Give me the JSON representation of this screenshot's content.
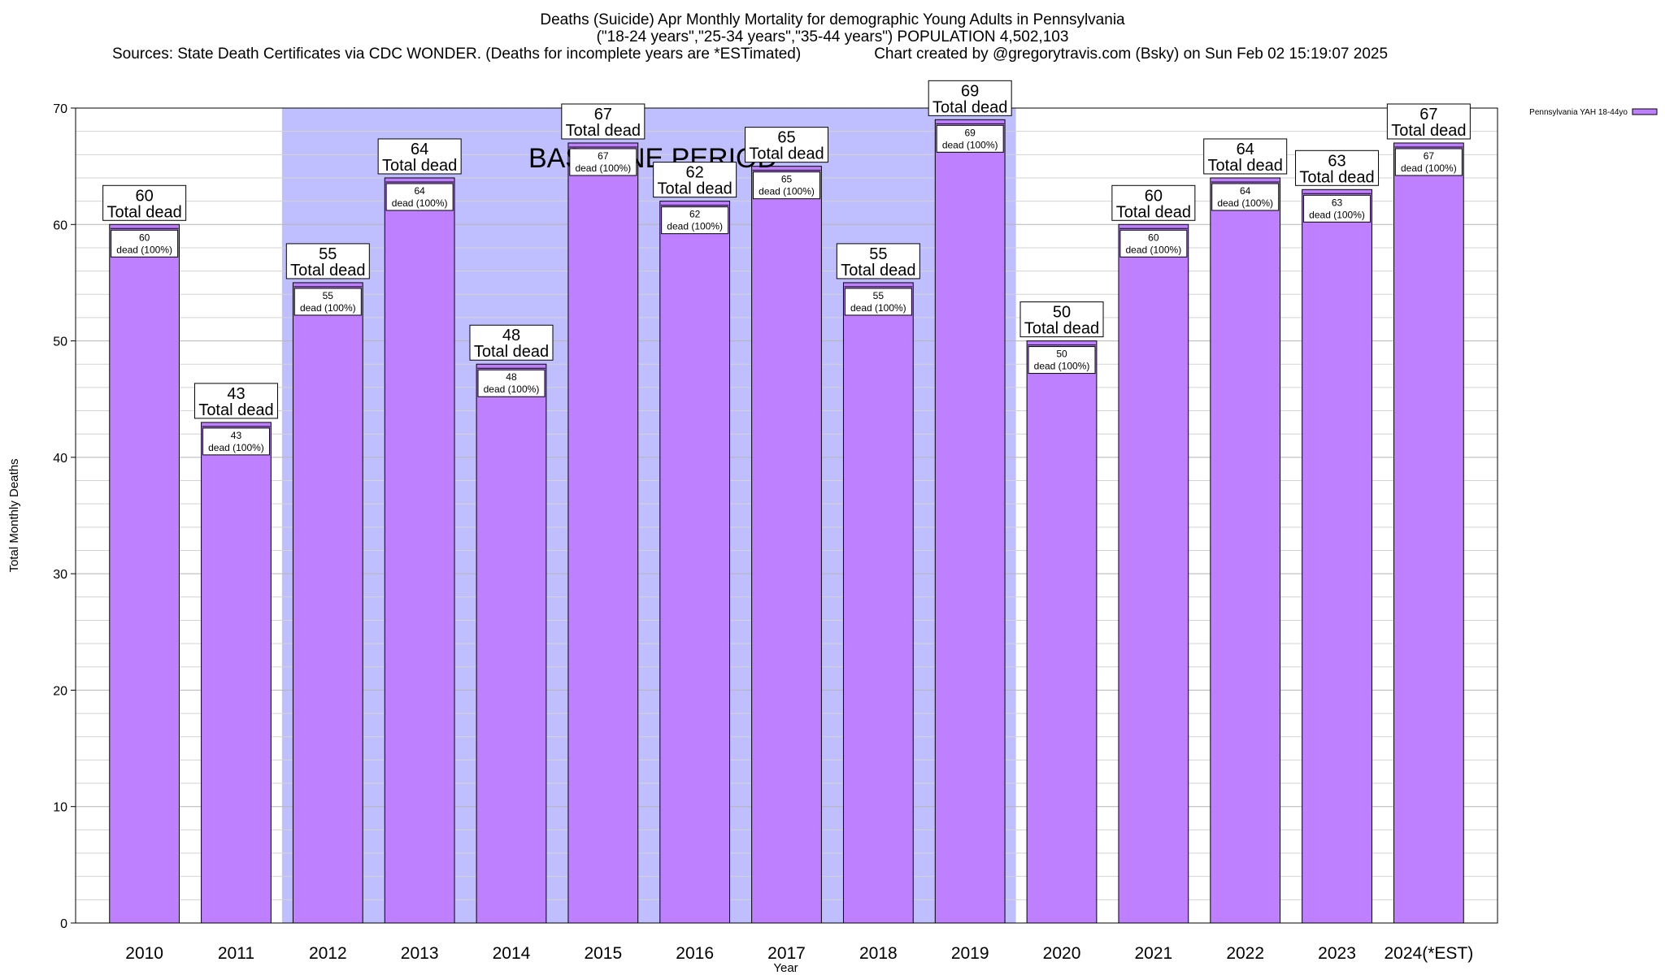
{
  "header": {
    "title_line1": "Deaths (Suicide) Apr Monthly Mortality for demographic Young Adults in Pennsylvania",
    "title_line2": "(\"18-24 years\",\"25-34 years\",\"35-44 years\") POPULATION 4,502,103",
    "sources": "Sources: State Death Certificates via CDC WONDER. (Deaths for incomplete years are *ESTimated)",
    "credit": "Chart created by @gregorytravis.com (Bsky) on Sun Feb 02 15:19:07 2025"
  },
  "chart_data": {
    "type": "bar",
    "xlabel": "Year",
    "ylabel": "Total Monthly Deaths",
    "ylim": [
      0,
      70
    ],
    "y_ticks": [
      0,
      10,
      20,
      30,
      40,
      50,
      60,
      70
    ],
    "grid": true,
    "categories": [
      "2010",
      "2011",
      "2012",
      "2013",
      "2014",
      "2015",
      "2016",
      "2017",
      "2018",
      "2019",
      "2020",
      "2021",
      "2022",
      "2023",
      "2024(*EST)"
    ],
    "series": [
      {
        "name": "Pennsylvania YAH 18-44yo",
        "color": "#bf80ff",
        "values": [
          60,
          43,
          55,
          64,
          48,
          67,
          62,
          65,
          55,
          69,
          50,
          60,
          64,
          63,
          67
        ]
      }
    ],
    "top_label_suffix": "Total dead",
    "inner_label_suffix": "dead (100%)",
    "baseline": {
      "label": "BASELINE PERIOD",
      "start": "2012",
      "end": "2019",
      "color": "#bfbfff"
    },
    "legend_position": "top-right"
  }
}
